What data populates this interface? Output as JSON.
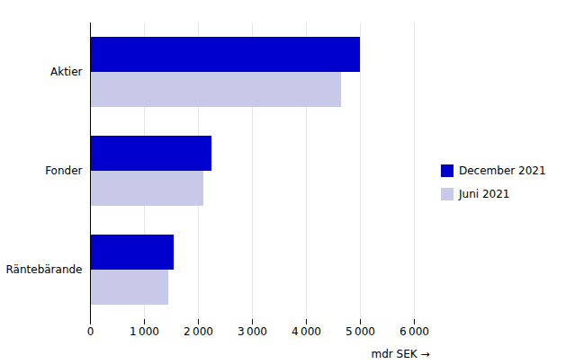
{
  "chart_data": {
    "type": "bar",
    "orientation": "horizontal",
    "categories": [
      "Aktier",
      "Fonder",
      "Räntebärande"
    ],
    "series": [
      {
        "name": "December 2021",
        "color": "#0000CC",
        "values": [
          5000,
          2250,
          1550
        ]
      },
      {
        "name": "Juni 2021",
        "color": "#C8C8E8",
        "values": [
          4650,
          2100,
          1450
        ]
      }
    ],
    "xlabel": "mdr SEK",
    "xlim": [
      0,
      6000
    ],
    "xticks": [
      0,
      {
        "value": 1000,
        "label": "1 000"
      },
      {
        "value": 2000,
        "label": "2 000"
      },
      {
        "value": 3000,
        "label": "3 000"
      },
      {
        "value": 4000,
        "label": "4 000"
      },
      {
        "value": 5000,
        "label": "5 000"
      },
      {
        "value": 6000,
        "label": "6 000"
      }
    ],
    "grid": true,
    "legend": "right"
  }
}
